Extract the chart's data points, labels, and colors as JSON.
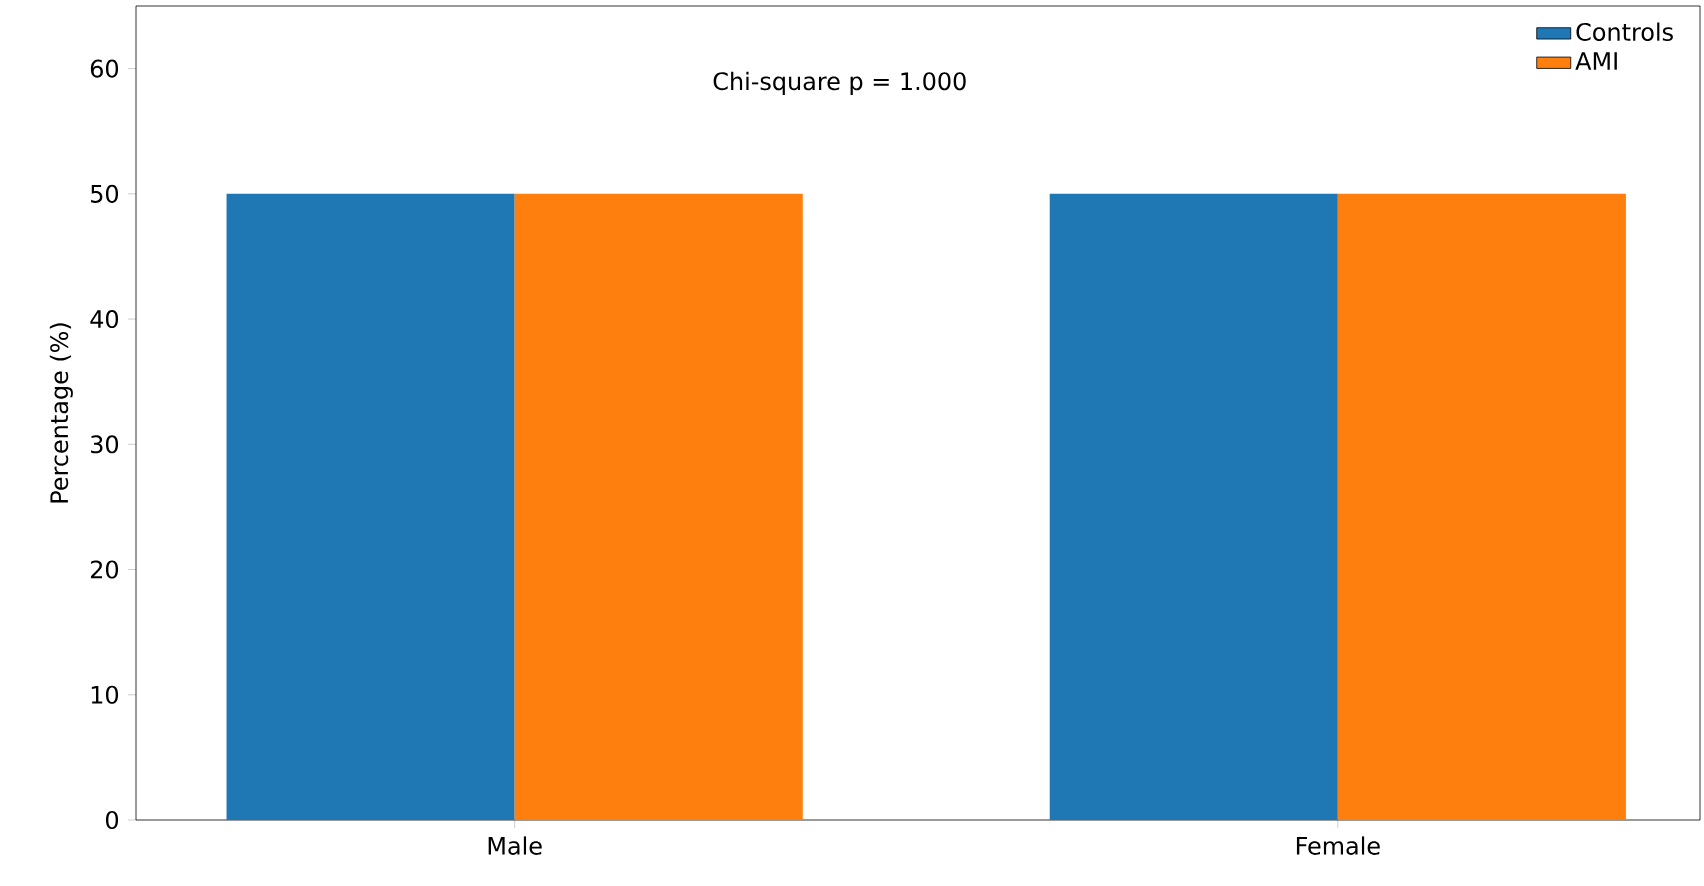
{
  "chart_data": {
    "type": "bar",
    "categories": [
      "Male",
      "Female"
    ],
    "series": [
      {
        "name": "Controls",
        "color": "#1f77b4",
        "values": [
          50,
          50
        ]
      },
      {
        "name": "AMI",
        "color": "#ff7f0e",
        "values": [
          50,
          50
        ]
      }
    ],
    "ylabel": "Percentage (%)",
    "ylim": [
      0,
      65
    ],
    "yticks": [
      0,
      10,
      20,
      30,
      40,
      50,
      60
    ],
    "annotations": [
      "Chi-square p = 1.000"
    ],
    "legend": "top right",
    "grid": false
  }
}
